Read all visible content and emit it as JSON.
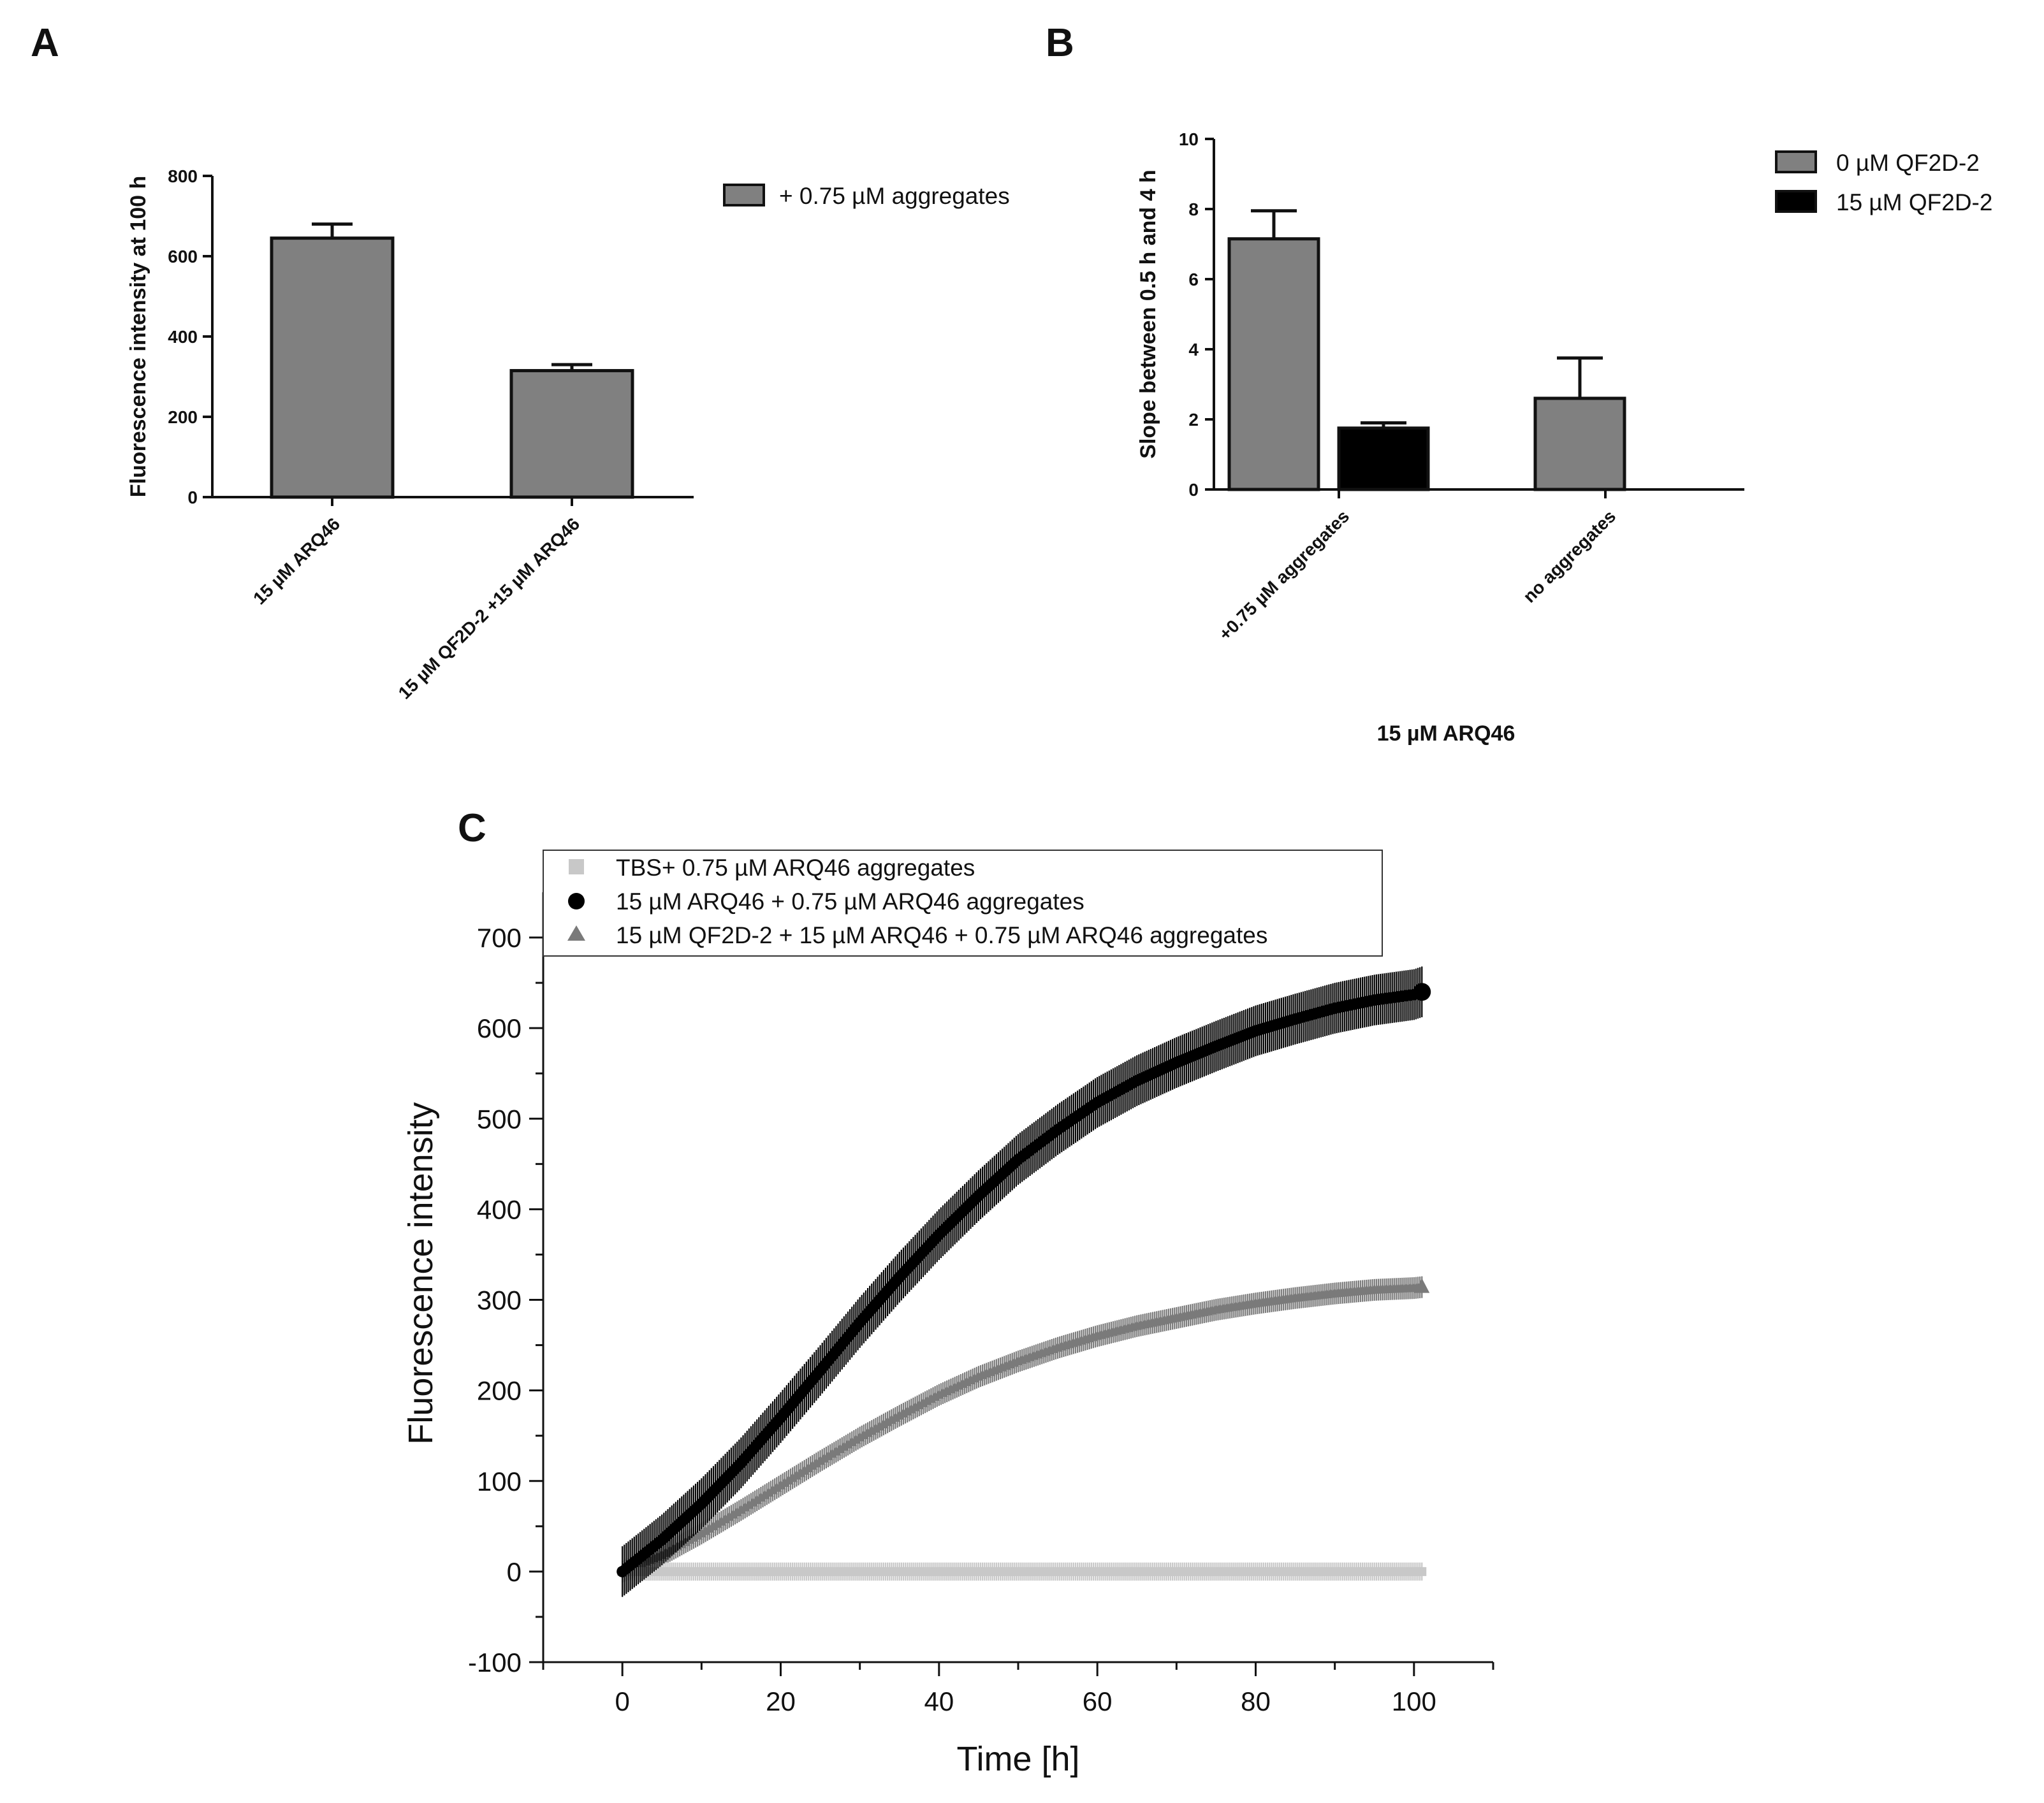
{
  "colors": {
    "grey_bar": "#808080",
    "black_bar": "#000000",
    "series_tbs": "#c8c8c8",
    "series_arq46": "#000000",
    "series_qf2d": "#7a7a7a"
  },
  "chart_data": [
    {
      "panel": "A",
      "type": "bar",
      "ylabel": "Fluorescence intensity at 100 h",
      "ylim": [
        0,
        800
      ],
      "yticks": [
        "800",
        "600",
        "400",
        "200",
        "0"
      ],
      "categories": [
        "15 µM ARQ46",
        "15 µM QF2D-2 +15 µM  ARQ46"
      ],
      "series": [
        {
          "name": "+ 0.75 µM aggregates",
          "values": [
            645,
            315
          ],
          "errors": [
            35,
            15
          ]
        }
      ]
    },
    {
      "panel": "B",
      "type": "bar",
      "ylabel": "Slope between 0.5 h and 4 h",
      "xlabel": "15 µM ARQ46",
      "ylim": [
        0,
        10
      ],
      "yticks": [
        "10",
        "8",
        "6",
        "4",
        "2",
        "0"
      ],
      "categories": [
        "+0.75 µM aggregates",
        "no aggregates"
      ],
      "series": [
        {
          "name": "0 µM QF2D-2",
          "values": [
            7.15,
            2.6
          ],
          "errors": [
            0.8,
            1.15
          ]
        },
        {
          "name": "15 µM QF2D-2",
          "values": [
            1.75,
            null
          ],
          "errors": [
            0.15,
            null
          ]
        }
      ]
    },
    {
      "panel": "C",
      "type": "scatter",
      "xlabel": "Time [h]",
      "ylabel": "Fluorescence intensity",
      "xlim": [
        -10,
        110
      ],
      "ylim": [
        -100,
        750
      ],
      "xticks": [
        "0",
        "20",
        "40",
        "60",
        "80",
        "100"
      ],
      "yticks": [
        "-100",
        "0",
        "100",
        "200",
        "300",
        "400",
        "500",
        "600",
        "700"
      ],
      "series": [
        {
          "name": "TBS+ 0.75 µM ARQ46 aggregates",
          "marker": "square",
          "x": [
            0,
            2,
            5,
            10,
            20,
            30,
            40,
            50,
            60,
            70,
            80,
            90,
            100,
            101
          ],
          "y": [
            0,
            0,
            0,
            0,
            0,
            0,
            0,
            0,
            0,
            0,
            0,
            0,
            0,
            0
          ],
          "error": 10
        },
        {
          "name": "15 µM ARQ46 + 0.75 µM ARQ46 aggregates",
          "marker": "circle",
          "x": [
            0,
            5,
            10,
            15,
            20,
            25,
            30,
            35,
            40,
            45,
            50,
            55,
            60,
            65,
            70,
            75,
            80,
            85,
            90,
            95,
            100,
            101
          ],
          "y": [
            0,
            35,
            75,
            120,
            170,
            222,
            275,
            325,
            372,
            415,
            455,
            488,
            518,
            542,
            562,
            580,
            597,
            610,
            622,
            631,
            637,
            640
          ],
          "error": 28
        },
        {
          "name": "15 µM QF2D-2 + 15 µM  ARQ46 + 0.75 µM ARQ46 aggregates",
          "marker": "triangle",
          "x": [
            0,
            5,
            10,
            15,
            20,
            25,
            30,
            35,
            40,
            45,
            50,
            55,
            60,
            65,
            70,
            75,
            80,
            85,
            90,
            95,
            100,
            101
          ],
          "y": [
            0,
            18,
            42,
            68,
            95,
            122,
            148,
            172,
            195,
            215,
            232,
            247,
            260,
            271,
            280,
            289,
            296,
            302,
            307,
            311,
            313,
            314
          ],
          "error": 12
        }
      ]
    }
  ]
}
